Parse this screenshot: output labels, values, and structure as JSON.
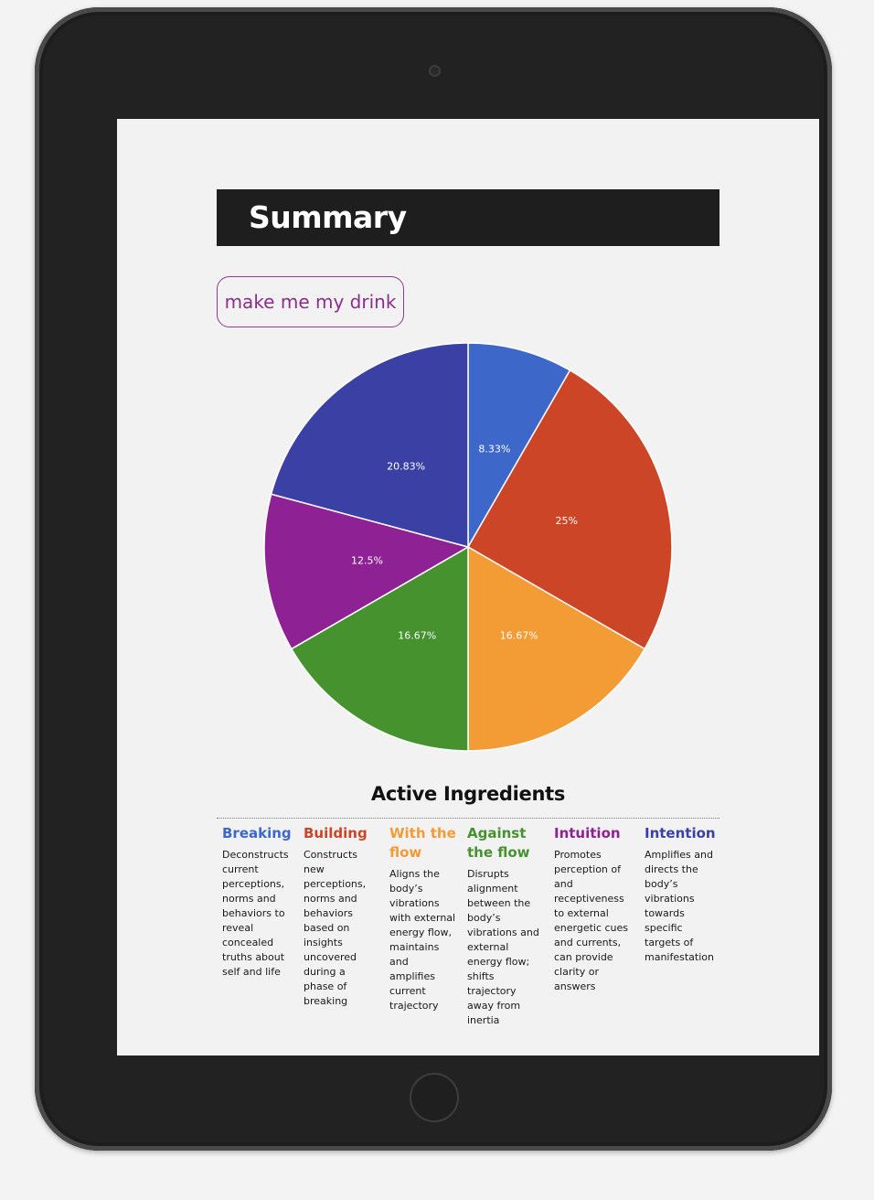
{
  "summary": {
    "title": "Summary"
  },
  "action": {
    "drink_button": "make me my drink"
  },
  "chart_data": {
    "type": "pie",
    "slices": [
      {
        "name": "Breaking",
        "value": 8.33,
        "label": "8.33%",
        "color": "#3d67c8"
      },
      {
        "name": "Building",
        "value": 25,
        "label": "25%",
        "color": "#cc4527"
      },
      {
        "name": "With the flow",
        "value": 16.67,
        "label": "16.67%",
        "color": "#f39c35"
      },
      {
        "name": "Against the flow",
        "value": 16.67,
        "label": "16.67%",
        "color": "#45922f"
      },
      {
        "name": "Intuition",
        "value": 12.5,
        "label": "12.5%",
        "color": "#8e2294"
      },
      {
        "name": "Intention",
        "value": 20.83,
        "label": "20.83%",
        "color": "#3b40a5"
      }
    ]
  },
  "ingredients": {
    "title": "Active Ingredients",
    "items": [
      {
        "name": "Breaking",
        "color": "#3d67c8",
        "description": "Deconstructs current perceptions, norms and behaviors to reveal concealed truths about self and life"
      },
      {
        "name": "Building",
        "color": "#cc4527",
        "description": "Constructs new perceptions, norms and behaviors based on insights uncovered during a phase of breaking"
      },
      {
        "name": "With the flow",
        "color": "#f39c35",
        "description": "Aligns the body’s vibrations with external energy flow, maintains and amplifies current trajectory"
      },
      {
        "name": "Against the flow",
        "color": "#45922f",
        "description": "Disrupts alignment between the body’s vibrations and external energy flow; shifts trajectory away from inertia"
      },
      {
        "name": "Intuition",
        "color": "#8e2294",
        "description": "Promotes perception of and receptiveness to external energetic cues and currents, can provide clarity or answers"
      },
      {
        "name": "Intention",
        "color": "#3b40a5",
        "description": "Amplifies and directs the body’s vibrations towards specific targets of manifestation"
      }
    ]
  }
}
